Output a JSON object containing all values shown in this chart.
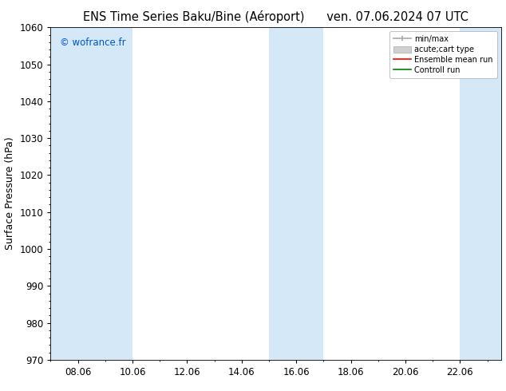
{
  "title_left": "ENS Time Series Baku/Bine (Aéroport)",
  "title_right": "ven. 07.06.2024 07 UTC",
  "ylabel": "Surface Pressure (hPa)",
  "ylim": [
    970,
    1060
  ],
  "yticks": [
    970,
    980,
    990,
    1000,
    1010,
    1020,
    1030,
    1040,
    1050,
    1060
  ],
  "xtick_labels": [
    "08.06",
    "10.06",
    "12.06",
    "14.06",
    "16.06",
    "18.06",
    "20.06",
    "22.06"
  ],
  "watermark": "© wofrance.fr",
  "watermark_color": "#0055cc",
  "background_color": "#ffffff",
  "shaded_band_color": "#d4e8f7",
  "legend_entries": [
    {
      "label": "min/max",
      "color": "#999999",
      "type": "errorbar"
    },
    {
      "label": "acute;cart type",
      "color": "#cccccc",
      "type": "fill"
    },
    {
      "label": "Ensemble mean run",
      "color": "#ff0000",
      "type": "line"
    },
    {
      "label": "Controll run",
      "color": "#008000",
      "type": "line"
    }
  ],
  "title_fontsize": 10.5,
  "tick_fontsize": 8.5,
  "ylabel_fontsize": 9,
  "shaded_regions": [
    {
      "xmin": 0.0,
      "xmax": 3.0
    },
    {
      "xmin": 8.0,
      "xmax": 10.0
    },
    {
      "xmin": 15.0,
      "xmax": 16.5
    }
  ]
}
